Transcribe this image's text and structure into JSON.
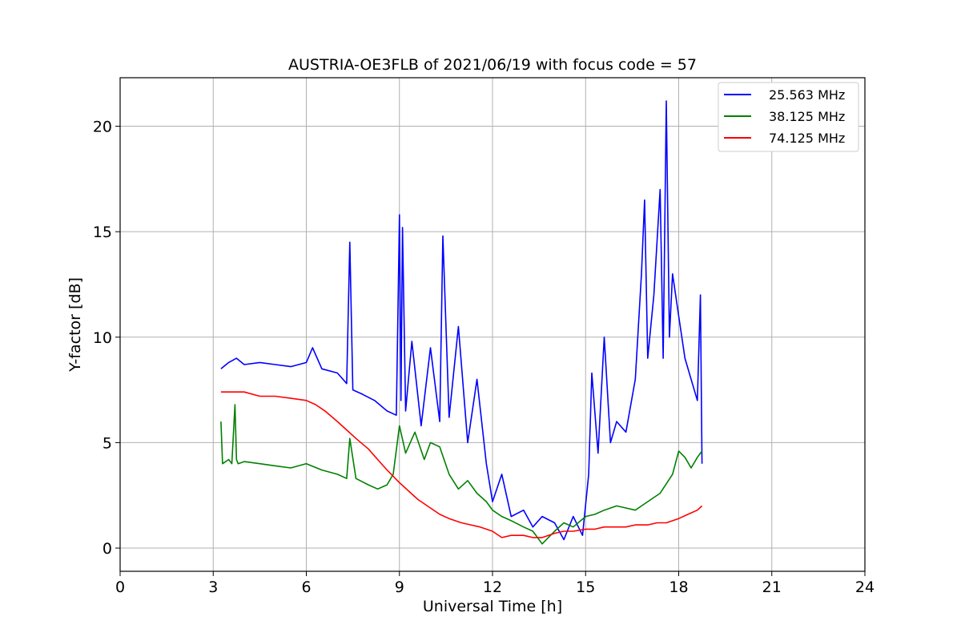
{
  "chart_data": {
    "type": "line",
    "title": "AUSTRIA-OE3FLB of 2021/06/19 with focus code = 57",
    "xlabel": "Universal Time [h]",
    "ylabel": "Y-factor [dB]",
    "xlim": [
      0,
      24
    ],
    "ylim": [
      -1.1,
      22.3
    ],
    "xticks": [
      0,
      3,
      6,
      9,
      12,
      15,
      18,
      21,
      24
    ],
    "yticks": [
      0,
      5,
      10,
      15,
      20
    ],
    "grid": true,
    "legend_position": "top-right",
    "series": [
      {
        "name": "25.563 MHz",
        "color": "#0000ff",
        "x": [
          3.25,
          3.5,
          3.75,
          4.0,
          4.5,
          5.0,
          5.5,
          6.0,
          6.2,
          6.5,
          7.0,
          7.3,
          7.4,
          7.5,
          7.8,
          8.2,
          8.6,
          8.9,
          9.0,
          9.05,
          9.1,
          9.2,
          9.4,
          9.7,
          10.0,
          10.3,
          10.4,
          10.6,
          10.9,
          11.2,
          11.5,
          11.8,
          12.0,
          12.3,
          12.6,
          13.0,
          13.3,
          13.6,
          14.0,
          14.3,
          14.6,
          14.9,
          15.1,
          15.2,
          15.4,
          15.6,
          15.8,
          16.0,
          16.3,
          16.6,
          16.8,
          16.9,
          17.0,
          17.2,
          17.4,
          17.5,
          17.6,
          17.7,
          17.8,
          18.0,
          18.2,
          18.4,
          18.6,
          18.7,
          18.75
        ],
        "y": [
          8.5,
          8.8,
          9.0,
          8.7,
          8.8,
          8.7,
          8.6,
          8.8,
          9.5,
          8.5,
          8.3,
          7.8,
          14.5,
          7.5,
          7.3,
          7.0,
          6.5,
          6.3,
          15.8,
          7.0,
          15.2,
          6.5,
          9.8,
          5.8,
          9.5,
          6.0,
          14.8,
          6.2,
          10.5,
          5.0,
          8.0,
          4.0,
          2.2,
          3.5,
          1.5,
          1.8,
          1.0,
          1.5,
          1.2,
          0.4,
          1.5,
          0.6,
          3.5,
          8.3,
          4.5,
          10.0,
          5.0,
          6.0,
          5.5,
          8.0,
          13.0,
          16.5,
          9.0,
          12.0,
          17.0,
          9.0,
          21.2,
          10.0,
          13.0,
          11.0,
          9.0,
          8.0,
          7.0,
          12.0,
          4.0
        ]
      },
      {
        "name": "38.125 MHz",
        "color": "#008000",
        "x": [
          3.25,
          3.3,
          3.5,
          3.6,
          3.7,
          3.75,
          3.8,
          4.0,
          4.5,
          5.0,
          5.5,
          6.0,
          6.5,
          7.0,
          7.3,
          7.4,
          7.6,
          8.0,
          8.3,
          8.6,
          8.8,
          9.0,
          9.2,
          9.5,
          9.8,
          10.0,
          10.3,
          10.6,
          10.9,
          11.2,
          11.5,
          11.8,
          12.0,
          12.3,
          12.6,
          13.0,
          13.3,
          13.6,
          14.0,
          14.3,
          14.6,
          15.0,
          15.3,
          15.6,
          16.0,
          16.3,
          16.6,
          17.0,
          17.4,
          17.8,
          18.0,
          18.2,
          18.4,
          18.6,
          18.75
        ],
        "y": [
          6.0,
          4.0,
          4.2,
          4.0,
          6.8,
          4.2,
          4.0,
          4.1,
          4.0,
          3.9,
          3.8,
          4.0,
          3.7,
          3.5,
          3.3,
          5.2,
          3.3,
          3.0,
          2.8,
          3.0,
          3.5,
          5.8,
          4.5,
          5.5,
          4.2,
          5.0,
          4.8,
          3.5,
          2.8,
          3.2,
          2.6,
          2.2,
          1.8,
          1.5,
          1.3,
          1.0,
          0.8,
          0.2,
          0.8,
          1.2,
          1.0,
          1.5,
          1.6,
          1.8,
          2.0,
          1.9,
          1.8,
          2.2,
          2.6,
          3.5,
          4.6,
          4.3,
          3.8,
          4.3,
          4.6
        ]
      },
      {
        "name": "74.125 MHz",
        "color": "#ff0000",
        "x": [
          3.25,
          3.5,
          4.0,
          4.5,
          5.0,
          5.5,
          6.0,
          6.3,
          6.6,
          7.0,
          7.3,
          7.6,
          8.0,
          8.3,
          8.6,
          9.0,
          9.3,
          9.6,
          10.0,
          10.3,
          10.6,
          11.0,
          11.3,
          11.6,
          12.0,
          12.3,
          12.6,
          13.0,
          13.3,
          13.6,
          14.0,
          14.3,
          14.6,
          15.0,
          15.3,
          15.6,
          16.0,
          16.3,
          16.6,
          17.0,
          17.3,
          17.6,
          18.0,
          18.3,
          18.6,
          18.75
        ],
        "y": [
          7.4,
          7.4,
          7.4,
          7.2,
          7.2,
          7.1,
          7.0,
          6.8,
          6.5,
          6.0,
          5.6,
          5.2,
          4.7,
          4.2,
          3.7,
          3.1,
          2.7,
          2.3,
          1.9,
          1.6,
          1.4,
          1.2,
          1.1,
          1.0,
          0.8,
          0.5,
          0.6,
          0.6,
          0.5,
          0.5,
          0.7,
          0.8,
          0.8,
          0.9,
          0.9,
          1.0,
          1.0,
          1.0,
          1.1,
          1.1,
          1.2,
          1.2,
          1.4,
          1.6,
          1.8,
          2.0
        ]
      }
    ]
  }
}
